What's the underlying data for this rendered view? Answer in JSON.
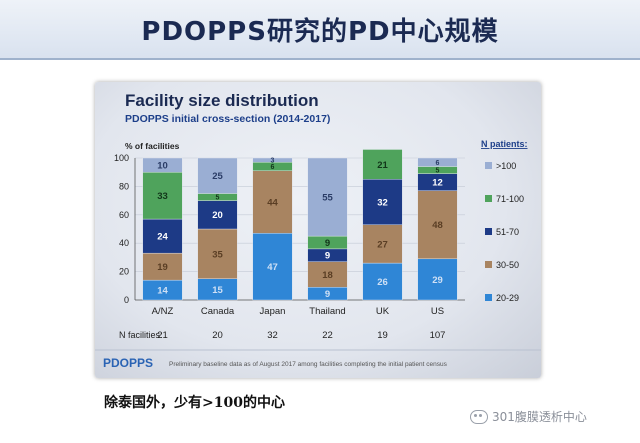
{
  "slide": {
    "title": "PDOPPS研究的PD中心规模",
    "caption": "除泰国外，少有>100的中心",
    "watermark": "301腹膜透析中心"
  },
  "colors": {
    "20-29": "#2f86d6",
    "30-50": "#a88461",
    "51-70": "#1d3a86",
    "71-100": "#4fa35c",
    ">100": "#9aaed3"
  },
  "chart_data": {
    "type": "bar",
    "stacked": true,
    "title": "Facility size distribution",
    "subtitle": "PDOPPS initial cross-section (2014-2017)",
    "ylabel": "% of facilities",
    "ylim": [
      0,
      100
    ],
    "yticks": [
      0,
      20,
      40,
      60,
      80,
      100
    ],
    "categories": [
      "A/NZ",
      "Canada",
      "Japan",
      "Thailand",
      "UK",
      "US"
    ],
    "n_label": "N facilities:",
    "n_facilities": [
      "21",
      "20",
      "32",
      "22",
      "19",
      "107"
    ],
    "legend_title": "N patients:",
    "legend_position": "right",
    "series": [
      {
        "name": "20-29",
        "values": [
          14,
          15,
          47,
          9,
          26,
          29
        ]
      },
      {
        "name": "30-50",
        "values": [
          19,
          35,
          44,
          18,
          27,
          48
        ]
      },
      {
        "name": "51-70",
        "values": [
          24,
          20,
          0,
          9,
          32,
          12
        ]
      },
      {
        "name": "71-100",
        "values": [
          33,
          5,
          6,
          9,
          21,
          5
        ]
      },
      {
        "name": ">100",
        "values": [
          10,
          25,
          3,
          55,
          0,
          6
        ]
      }
    ],
    "legend_order": [
      ">100",
      "71-100",
      "51-70",
      "30-50",
      "20-29"
    ],
    "footer_logo": "PDOPPS",
    "footnote": "Preliminary baseline data as of August 2017 among facilities completing the initial patient census"
  }
}
